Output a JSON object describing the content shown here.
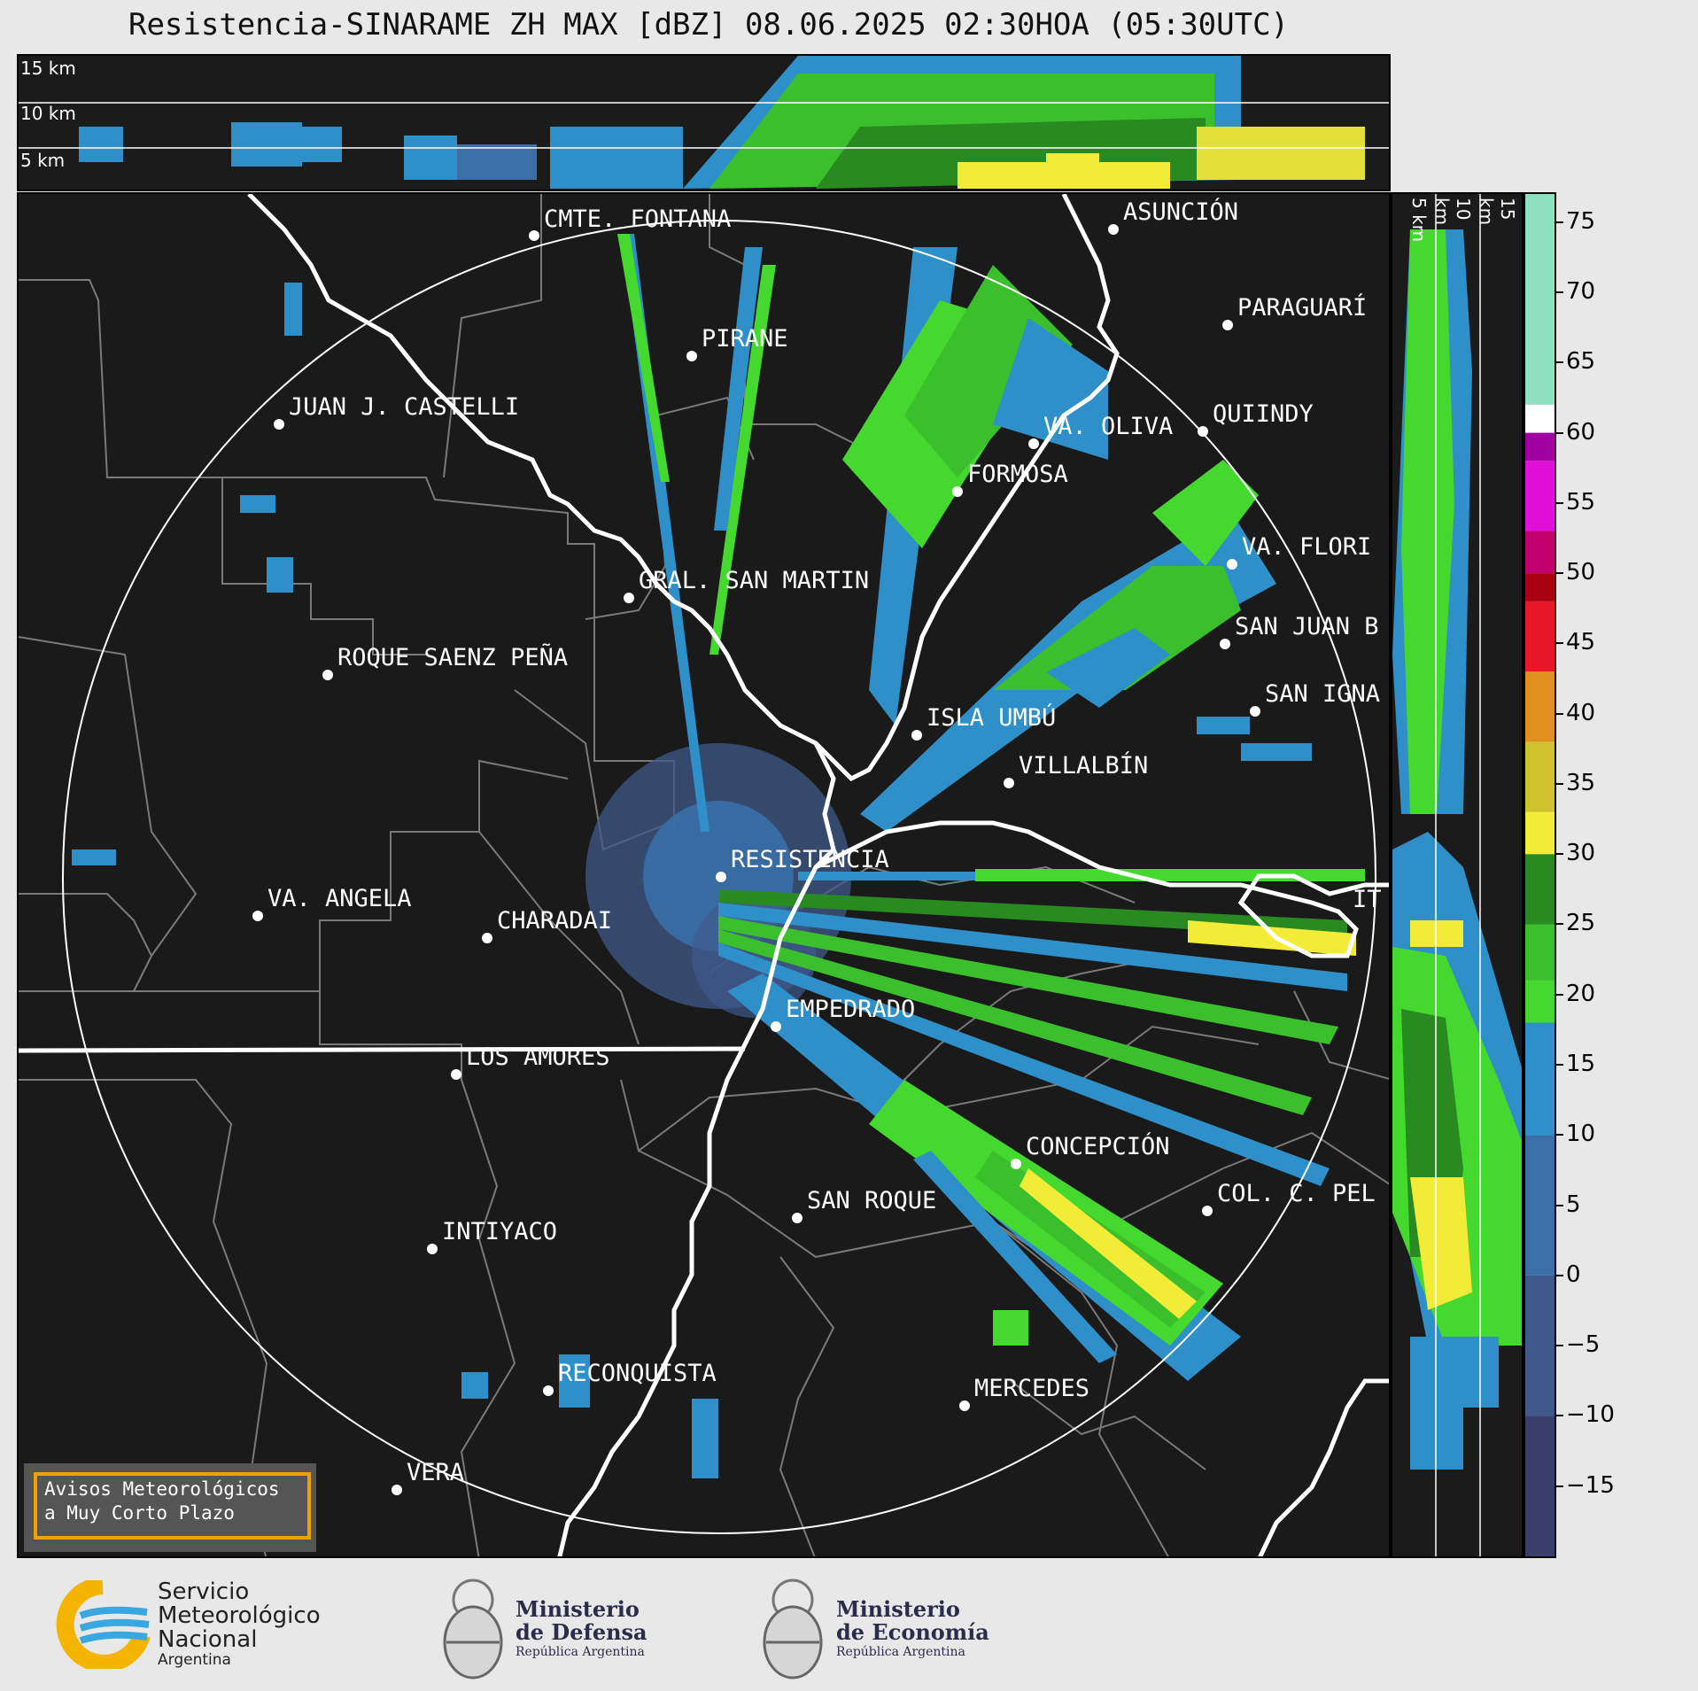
{
  "title": "Resistencia-SINARAME ZH MAX [dBZ] 08.06.2025 02:30HOA (05:30UTC)",
  "height_labels_top": [
    "15 km",
    "10 km",
    "5 km"
  ],
  "height_labels_right": [
    "5 km",
    "10 km",
    "15 km"
  ],
  "colorbar": {
    "ticks": [
      "75",
      "70",
      "65",
      "60",
      "55",
      "50",
      "45",
      "40",
      "35",
      "30",
      "25",
      "20",
      "15",
      "10",
      "5",
      "0",
      "−5",
      "−10",
      "−15"
    ],
    "tick_values": [
      75,
      70,
      65,
      60,
      55,
      50,
      45,
      40,
      35,
      30,
      25,
      20,
      15,
      10,
      5,
      0,
      -5,
      -10,
      -15
    ],
    "range": [
      -20,
      77
    ],
    "colors": [
      {
        "from": -20,
        "to": -10,
        "color": "#3b3f6b"
      },
      {
        "from": -10,
        "to": 0,
        "color": "#3f5a8a"
      },
      {
        "from": 0,
        "to": 10,
        "color": "#3a6fa8"
      },
      {
        "from": 10,
        "to": 18,
        "color": "#2f8fc9"
      },
      {
        "from": 18,
        "to": 21,
        "color": "#45d82f"
      },
      {
        "from": 21,
        "to": 25,
        "color": "#3cbf2c"
      },
      {
        "from": 25,
        "to": 30,
        "color": "#2a8a22"
      },
      {
        "from": 30,
        "to": 33,
        "color": "#f2ec38"
      },
      {
        "from": 33,
        "to": 38,
        "color": "#cfc22e"
      },
      {
        "from": 38,
        "to": 43,
        "color": "#e0901e"
      },
      {
        "from": 43,
        "to": 48,
        "color": "#e8182a"
      },
      {
        "from": 48,
        "to": 50,
        "color": "#a80012"
      },
      {
        "from": 50,
        "to": 53,
        "color": "#c2006e"
      },
      {
        "from": 53,
        "to": 58,
        "color": "#e010d8"
      },
      {
        "from": 58,
        "to": 60,
        "color": "#a000a0"
      },
      {
        "from": 60,
        "to": 62,
        "color": "#ffffff"
      },
      {
        "from": 62,
        "to": 77,
        "color": "#8fe0c0"
      }
    ]
  },
  "cities": [
    {
      "name": "CMTE. FONTANA"
    },
    {
      "name": "ASUNCIÓN"
    },
    {
      "name": "PARAGUARÍ"
    },
    {
      "name": "PIRANE"
    },
    {
      "name": "JUAN J. CASTELLI"
    },
    {
      "name": "VA. OLIVA"
    },
    {
      "name": "QUIINDY"
    },
    {
      "name": "FORMOSA"
    },
    {
      "name": "VA. FLORI"
    },
    {
      "name": "GRAL. SAN MARTIN"
    },
    {
      "name": "SAN JUAN B"
    },
    {
      "name": "ROQUE SAENZ PEÑA"
    },
    {
      "name": "SAN IGNA"
    },
    {
      "name": "ISLA UMBÚ"
    },
    {
      "name": "VILLALBÍN"
    },
    {
      "name": "RESISTENCIA"
    },
    {
      "name": "IT"
    },
    {
      "name": "VA. ANGELA"
    },
    {
      "name": "CHARADAI"
    },
    {
      "name": "EMPEDRADO"
    },
    {
      "name": "LOS AMORES"
    },
    {
      "name": "CONCEPCIÓN"
    },
    {
      "name": "COL. C. PEL"
    },
    {
      "name": "SAN ROQUE"
    },
    {
      "name": "INTIYACO"
    },
    {
      "name": "RECONQUISTA"
    },
    {
      "name": "MERCEDES"
    },
    {
      "name": "VERA"
    }
  ],
  "notice": {
    "line1": "Avisos Meteorológicos",
    "line2": "a Muy Corto Plazo"
  },
  "logos": {
    "smn": {
      "line1": "Servicio",
      "line2": "Meteorológico",
      "line3": "Nacional",
      "line4": "Argentina"
    },
    "defensa": {
      "line1": "Ministerio",
      "line2": "de Defensa",
      "line3": "República Argentina"
    },
    "economia": {
      "line1": "Ministerio",
      "line2": "de Economía",
      "line3": "República Argentina"
    }
  }
}
